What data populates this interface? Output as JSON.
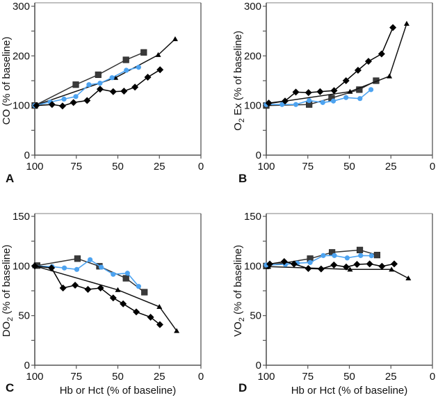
{
  "chart_data": [
    {
      "type": "line",
      "panel": "A",
      "xlabel": "",
      "ylabel": "CO (% of baseline)",
      "ylabel_main": "CO (% of baseline)",
      "ylabel_sub": "",
      "ylabel_rest": "",
      "xlim": [
        100,
        0
      ],
      "ylim": [
        0,
        300
      ],
      "xticks": [
        100,
        75,
        50,
        25,
        0
      ],
      "yticks": [
        0,
        100,
        200,
        300
      ],
      "yminor": [
        50,
        150,
        250
      ],
      "series": [
        {
          "name": "squares",
          "marker": "square",
          "color": "#333333",
          "x": [
            100,
            75.3,
            61.8,
            45.1,
            34.4
          ],
          "y": [
            100,
            142,
            162,
            192,
            207
          ]
        },
        {
          "name": "triangles",
          "marker": "triangle",
          "color": "#111111",
          "x": [
            100,
            51.4,
            25.7,
            15.5
          ],
          "y": [
            100,
            156,
            202,
            234
          ]
        },
        {
          "name": "circles",
          "marker": "circle",
          "color": "#4da3f0",
          "x": [
            100,
            90.7,
            82.4,
            75.3,
            67.4,
            60.7,
            53.5,
            44.9,
            37.5
          ],
          "y": [
            100,
            107,
            113,
            118,
            142,
            145,
            156,
            171,
            177
          ]
        },
        {
          "name": "diamonds",
          "marker": "diamond",
          "color": "#000000",
          "x": [
            99,
            89.6,
            83.3,
            76.7,
            68.5,
            60.7,
            52.8,
            46.3,
            39.7,
            32,
            24.6
          ],
          "y": [
            100,
            102,
            99,
            106,
            110,
            133,
            128,
            129,
            137,
            157,
            172
          ]
        }
      ]
    },
    {
      "type": "line",
      "panel": "B",
      "xlabel": "",
      "ylabel": "O2 Ex (% of baseline)",
      "ylabel_main": "O",
      "ylabel_sub": "2",
      "ylabel_rest": " Ex (% of baseline)",
      "xlim": [
        100,
        0
      ],
      "ylim": [
        0,
        300
      ],
      "xticks": [
        100,
        75,
        50,
        25,
        0
      ],
      "yticks": [
        0,
        100,
        200,
        300
      ],
      "yminor": [
        50,
        150,
        250
      ],
      "series": [
        {
          "name": "squares",
          "marker": "square",
          "color": "#333333",
          "x": [
            100,
            74.2,
            60.7,
            44,
            33.9
          ],
          "y": [
            100,
            102,
            115,
            132,
            150
          ]
        },
        {
          "name": "triangles",
          "marker": "triangle",
          "color": "#111111",
          "x": [
            98.5,
            49.6,
            25.9,
            15.5
          ],
          "y": [
            104,
            128,
            159,
            265
          ]
        },
        {
          "name": "circles",
          "marker": "circle",
          "color": "#4da3f0",
          "x": [
            100,
            90.5,
            82.2,
            74.2,
            66,
            59.6,
            52,
            43.6,
            37
          ],
          "y": [
            102,
            102,
            102,
            110,
            106,
            109,
            116,
            114,
            132
          ]
        },
        {
          "name": "diamonds",
          "marker": "diamond",
          "color": "#000000",
          "x": [
            98.5,
            88.7,
            82.2,
            74.6,
            67.6,
            59.2,
            52,
            44.8,
            38.5,
            30.6,
            23.8
          ],
          "y": [
            105,
            109,
            127,
            126,
            128,
            130,
            150,
            171,
            189,
            204,
            257
          ]
        }
      ]
    },
    {
      "type": "line",
      "panel": "C",
      "xlabel": "Hb or Hct (% of baseline)",
      "ylabel": "DO2 (% of baseline)",
      "ylabel_main": "DO",
      "ylabel_sub": "2",
      "ylabel_rest": " (% of baseline)",
      "xlim": [
        100,
        0
      ],
      "ylim": [
        0,
        150
      ],
      "xticks": [
        100,
        75,
        50,
        25,
        0
      ],
      "yticks": [
        0,
        50,
        100,
        150
      ],
      "yminor": [
        25,
        75,
        125
      ],
      "series": [
        {
          "name": "squares",
          "marker": "square",
          "color": "#333333",
          "x": [
            98.6,
            74.3,
            61.1,
            45.1,
            34
          ],
          "y": [
            100.4,
            107.4,
            99.7,
            87.6,
            73.6
          ]
        },
        {
          "name": "triangles",
          "marker": "triangle",
          "color": "#111111",
          "x": [
            100,
            50,
            25,
            14.6
          ],
          "y": [
            100,
            75.9,
            58.9,
            34.6
          ]
        },
        {
          "name": "circles",
          "marker": "circle",
          "color": "#4da3f0",
          "x": [
            100,
            89.6,
            82.2,
            74.7,
            66.7,
            60,
            52.8,
            44.2,
            37.5
          ],
          "y": [
            100,
            99.3,
            98,
            96.5,
            106.3,
            98.8,
            91.6,
            92.7,
            79.4
          ]
        },
        {
          "name": "diamonds",
          "marker": "diamond",
          "color": "#000000",
          "x": [
            100,
            89.9,
            83,
            75.7,
            68,
            60.4,
            52.8,
            46.8,
            38.9,
            30.3,
            24.7
          ],
          "y": [
            100,
            98,
            77.8,
            80.6,
            76.4,
            77.8,
            67.8,
            61.9,
            53.7,
            48.4,
            40.9
          ]
        }
      ]
    },
    {
      "type": "line",
      "panel": "D",
      "xlabel": "Hb or Hct (% of baseline)",
      "ylabel": "VO2 (% of baseline)",
      "ylabel_main": "VO",
      "ylabel_sub": "2",
      "ylabel_rest": " (% of baseline)",
      "xlim": [
        100,
        0
      ],
      "ylim": [
        0,
        150
      ],
      "xticks": [
        100,
        75,
        50,
        25,
        0
      ],
      "yticks": [
        0,
        50,
        100,
        150
      ],
      "yminor": [
        25,
        75,
        125
      ],
      "series": [
        {
          "name": "squares",
          "marker": "square",
          "color": "#333333",
          "x": [
            100,
            73.6,
            60.4,
            43.7,
            33.3
          ],
          "y": [
            100,
            107.4,
            113.7,
            116.1,
            111
          ]
        },
        {
          "name": "triangles",
          "marker": "triangle",
          "color": "#111111",
          "x": [
            98.7,
            49.6,
            24.6,
            14.5
          ],
          "y": [
            99.3,
            96.5,
            96.5,
            87.6
          ]
        },
        {
          "name": "circles",
          "marker": "circle",
          "color": "#4da3f0",
          "x": [
            100,
            88.5,
            81.3,
            73.6,
            65.7,
            59,
            51.3,
            43.2,
            36.7
          ],
          "y": [
            101,
            101.6,
            102.8,
            103.5,
            110.5,
            110.5,
            108.1,
            110.5,
            110.3
          ]
        },
        {
          "name": "diamonds",
          "marker": "diamond",
          "color": "#000000",
          "x": [
            97.9,
            89.2,
            83.3,
            74.7,
            67,
            59.3,
            51.9,
            45.4,
            37.8,
            30.4,
            23
          ],
          "y": [
            102,
            104.4,
            102,
            97.4,
            97,
            101,
            99,
            101.6,
            102.1,
            99.7,
            102.1
          ]
        }
      ]
    }
  ]
}
